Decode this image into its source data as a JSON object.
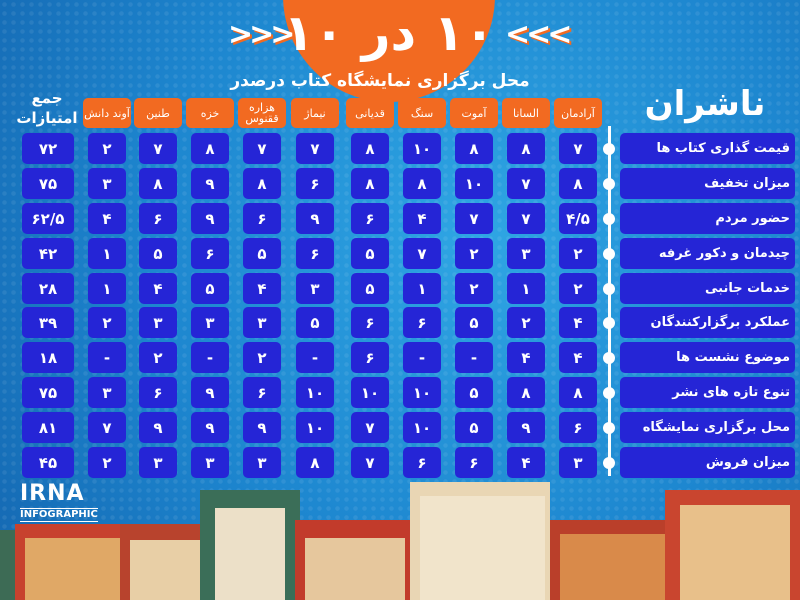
{
  "header": {
    "big_title": "۱۰ در ۱۰",
    "subtitle": "محل برگزاری نمایشگاه کتاب درصدر",
    "publishers_title": "ناشران"
  },
  "columns": [
    "آرادمان",
    "السانا",
    "آموت",
    "سنگ",
    "قدیانی",
    "نیماژ",
    "هزاره ققنوس",
    "خزه",
    "طنین",
    "آوند دانش"
  ],
  "total_header": "جمع امتیازات",
  "rows": [
    {
      "label": "قیمت گذاری کتاب ها",
      "scores": [
        "۷",
        "۸",
        "۸",
        "۱۰",
        "۸",
        "۷",
        "۷",
        "۸",
        "۷",
        "۲"
      ],
      "total": "۷۲"
    },
    {
      "label": "میزان تخفیف",
      "scores": [
        "۸",
        "۷",
        "۱۰",
        "۸",
        "۸",
        "۶",
        "۸",
        "۹",
        "۸",
        "۳"
      ],
      "total": "۷۵"
    },
    {
      "label": "حضور مردم",
      "scores": [
        "۴/۵",
        "۷",
        "۷",
        "۴",
        "۶",
        "۹",
        "۶",
        "۹",
        "۶",
        "۴"
      ],
      "total": "۶۲/۵"
    },
    {
      "label": "چیدمان و دکور غرفه",
      "scores": [
        "۲",
        "۳",
        "۲",
        "۷",
        "۵",
        "۶",
        "۵",
        "۶",
        "۵",
        "۱"
      ],
      "total": "۴۲"
    },
    {
      "label": "خدمات جانبی",
      "scores": [
        "۲",
        "۱",
        "۲",
        "۱",
        "۵",
        "۳",
        "۴",
        "۵",
        "۴",
        "۱"
      ],
      "total": "۲۸"
    },
    {
      "label": "عملکرد برگزارکنندگان",
      "scores": [
        "۴",
        "۲",
        "۵",
        "۶",
        "۶",
        "۵",
        "۳",
        "۳",
        "۳",
        "۲"
      ],
      "total": "۳۹"
    },
    {
      "label": "موضوع نشست ها",
      "scores": [
        "۴",
        "۴",
        "-",
        "-",
        "۶",
        "-",
        "۲",
        "-",
        "۲",
        "-"
      ],
      "total": "۱۸"
    },
    {
      "label": "تنوع تازه های نشر",
      "scores": [
        "۸",
        "۸",
        "۵",
        "۱۰",
        "۱۰",
        "۱۰",
        "۶",
        "۹",
        "۶",
        "۳"
      ],
      "total": "۷۵"
    },
    {
      "label": "محل برگزاری نمایشگاه",
      "scores": [
        "۶",
        "۹",
        "۵",
        "۱۰",
        "۷",
        "۱۰",
        "۹",
        "۹",
        "۹",
        "۷"
      ],
      "total": "۸۱"
    },
    {
      "label": "میزان فروش",
      "scores": [
        "۳",
        "۴",
        "۶",
        "۶",
        "۷",
        "۸",
        "۳",
        "۳",
        "۳",
        "۲"
      ],
      "total": "۴۵"
    }
  ],
  "logo": {
    "name": "IRNA",
    "sub": "INFOGRAPHIC"
  },
  "colors": {
    "accent": "#f26a21",
    "cell": "#2525d6",
    "background": "#1d86cf"
  }
}
